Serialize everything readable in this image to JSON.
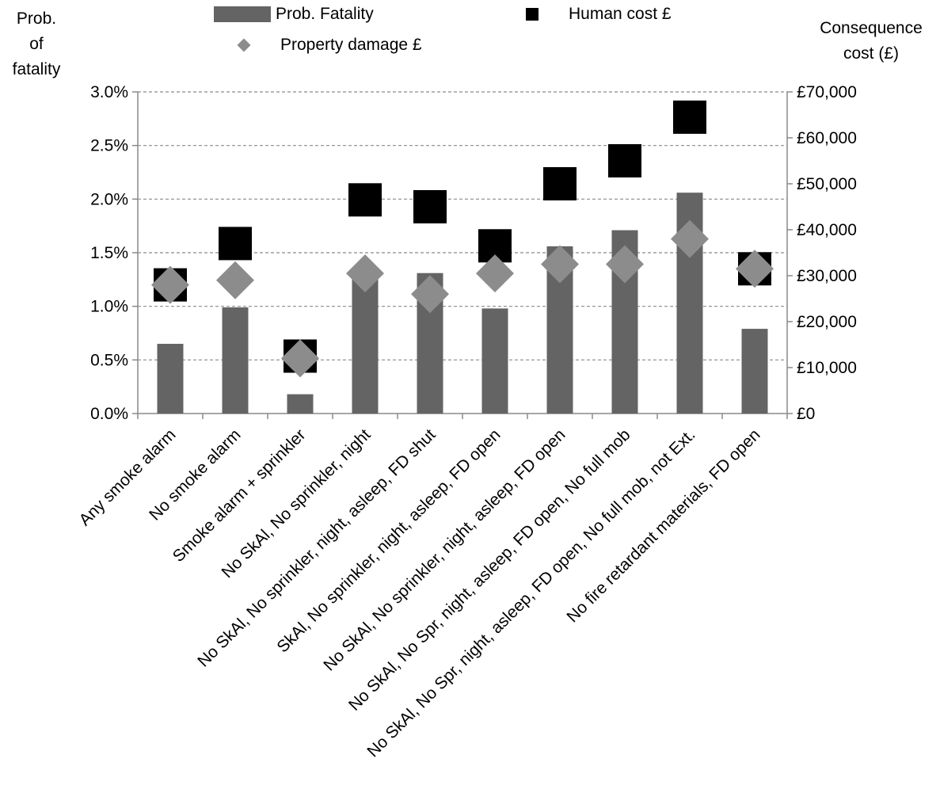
{
  "chart_data": {
    "type": "bar",
    "categories": [
      "Any smoke alarm",
      "No smoke alarm",
      "Smoke alarm + sprinkler",
      "No SkAl, No sprinkler, night",
      "No SkAl, No sprinkler, night, asleep, FD shut",
      "SkAl, No sprinkler, night, asleep, FD open",
      "No SkAl, No sprinkler, night, asleep, FD open",
      "No SkAl, No Spr, night, asleep, FD open, No full mob",
      "No SkAl, No Spr, night, asleep, FD open, No full mob, not Ext.",
      "No fire retardant materials, FD open"
    ],
    "series": [
      {
        "name": "Prob. Fatality",
        "axis": "left",
        "mark": "bar",
        "color": "#646464",
        "values": [
          0.0065,
          0.0099,
          0.0018,
          0.0134,
          0.0131,
          0.0098,
          0.0156,
          0.0171,
          0.0206,
          0.0079
        ]
      },
      {
        "name": "Human cost £",
        "axis": "right",
        "mark": "square",
        "color": "#000000",
        "values": [
          28000,
          37000,
          12500,
          46500,
          45000,
          36500,
          50000,
          55000,
          64500,
          31500
        ]
      },
      {
        "name": "Property damage £",
        "axis": "right",
        "mark": "diamond",
        "color": "#8c8c8c",
        "values": [
          28000,
          29000,
          12000,
          30500,
          26000,
          30500,
          32500,
          32500,
          38000,
          31500
        ]
      }
    ],
    "y_left": {
      "label": "Prob.\nof\nfatality",
      "ylim": [
        0,
        0.03
      ],
      "ticks": [
        0,
        0.005,
        0.01,
        0.015,
        0.02,
        0.025,
        0.03
      ],
      "tick_labels": [
        "0.0%",
        "0.5%",
        "1.0%",
        "1.5%",
        "2.0%",
        "2.5%",
        "3.0%"
      ]
    },
    "y_right": {
      "label": "Consequence\ncost (£)",
      "ylim": [
        0,
        70000
      ],
      "tick_labels": [
        "£0",
        "£10,000",
        "£20,000",
        "£30,000",
        "£40,000",
        "£50,000",
        "£60,000",
        "£70,000"
      ]
    },
    "grid": "horizontal dashed",
    "legend": "top"
  }
}
